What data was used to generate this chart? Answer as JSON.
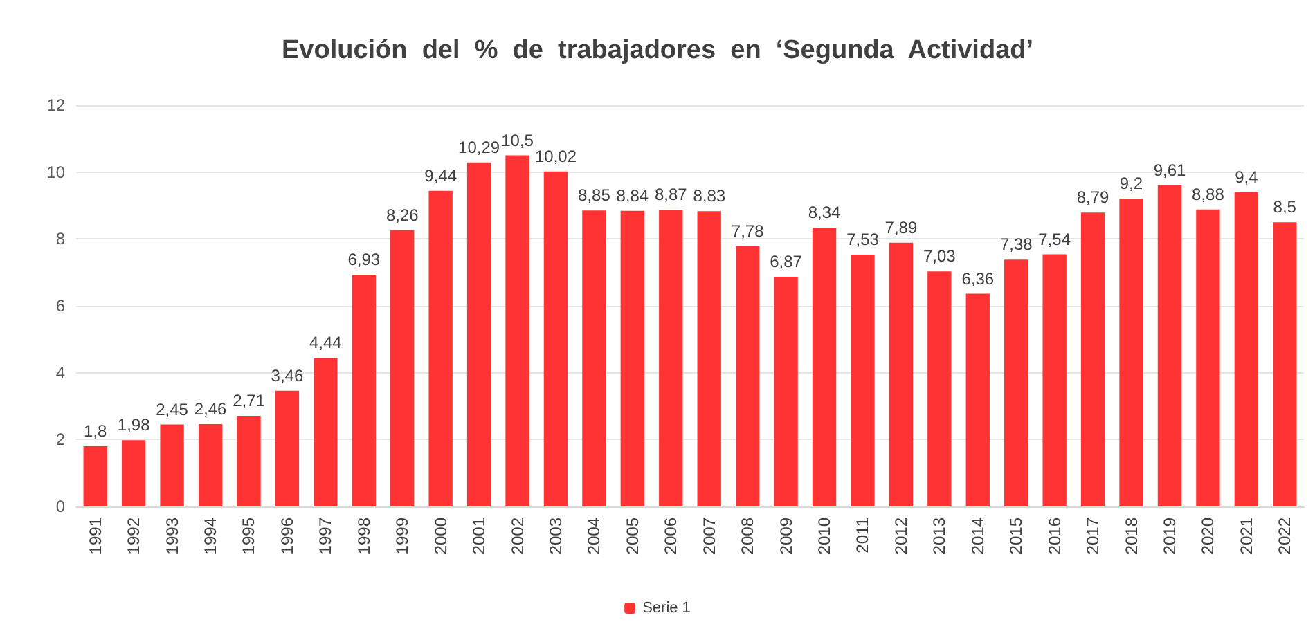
{
  "chart_data": {
    "type": "bar",
    "title": "Evolución  del  %  de  trabajadores  en  ‘Segunda  Actividad’",
    "categories": [
      "1991",
      "1992",
      "1993",
      "1994",
      "1995",
      "1996",
      "1997",
      "1998",
      "1999",
      "2000",
      "2001",
      "2002",
      "2003",
      "2004",
      "2005",
      "2006",
      "2007",
      "2008",
      "2009",
      "2010",
      "2011",
      "2012",
      "2013",
      "2014",
      "2015",
      "2016",
      "2017",
      "2018",
      "2019",
      "2020",
      "2021",
      "2022"
    ],
    "series": [
      {
        "name": "Serie 1",
        "color": "#ff3333",
        "values": [
          1.8,
          1.98,
          2.45,
          2.46,
          2.71,
          3.46,
          4.44,
          6.93,
          8.26,
          9.44,
          10.29,
          10.5,
          10.02,
          8.85,
          8.84,
          8.87,
          8.83,
          7.78,
          6.87,
          8.34,
          7.53,
          7.89,
          7.03,
          6.36,
          7.38,
          7.54,
          8.79,
          9.2,
          9.61,
          8.88,
          9.4,
          8.5
        ],
        "value_labels": [
          "1,8",
          "1,98",
          "2,45",
          "2,46",
          "2,71",
          "3,46",
          "4,44",
          "6,93",
          "8,26",
          "9,44",
          "10,29",
          "10,5",
          "10,02",
          "8,85",
          "8,84",
          "8,87",
          "8,83",
          "7,78",
          "6,87",
          "8,34",
          "7,53",
          "7,89",
          "7,03",
          "6,36",
          "7,38",
          "7,54",
          "8,79",
          "9,2",
          "9,61",
          "8,88",
          "9,4",
          "8,5"
        ]
      }
    ],
    "ylim": [
      0,
      12
    ],
    "yticks": [
      0,
      2,
      4,
      6,
      8,
      10,
      12
    ],
    "grid": "y",
    "legend": "bottom"
  }
}
